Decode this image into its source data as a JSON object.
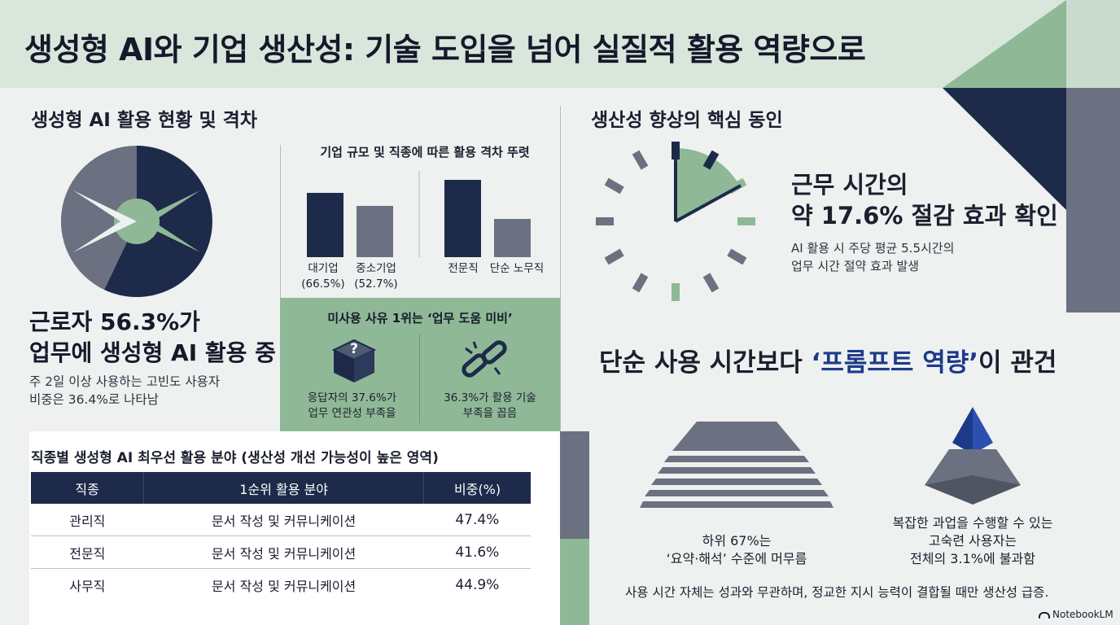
{
  "header": {
    "title": "생성형 AI와 기업 생산성: 기술 도입을 넘어 실질적 활용 역량으로"
  },
  "usage": {
    "section_title": "생성형 AI 활용 현황 및 격차",
    "headline_line1": "근로자 56.3%가",
    "headline_line2": "업무에 생성형 AI 활용 중",
    "detail_line1": "주 2일 이상 사용하는 고빈도 사용자",
    "detail_line2": "비중은 36.4%로 나타남"
  },
  "gap": {
    "title": "기업 규모 및 직종에 따른 활용 격차 뚜렷",
    "bars_left": [
      {
        "label": "대기업",
        "value_label": "(66.5%)",
        "value": 66.5,
        "color": "#1d2a4a"
      },
      {
        "label": "중소기업",
        "value_label": "(52.7%)",
        "value": 52.7,
        "color": "#6b7180"
      }
    ],
    "bars_right": [
      {
        "label": "전문직",
        "color": "#1d2a4a"
      },
      {
        "label": "단순 노무직",
        "color": "#6b7180"
      }
    ]
  },
  "nonuse": {
    "title": "미사용 사유 1위는 ‘업무 도움 미비’",
    "item1_line1": "응답자의 37.6%가",
    "item1_line2": "업무 연관성 부족을",
    "item2_line1": "36.3%가 활용 기술",
    "item2_line2": "부족을 꼽음",
    "icon1": "question-box-icon",
    "icon2": "broken-chain-icon"
  },
  "table": {
    "title": "직종별 생성형 AI 최우선 활용 분야 (생산성 개선 가능성이 높은 영역)",
    "headers": [
      "직종",
      "1순위 활용 분야",
      "비중(%)"
    ],
    "rows": [
      [
        "관리직",
        "문서 작성 및 커뮤니케이션",
        "47.4%"
      ],
      [
        "전문직",
        "문서 작성 및 커뮤니케이션",
        "41.6%"
      ],
      [
        "사무직",
        "문서 작성 및 커뮤니케이션",
        "44.9%"
      ]
    ]
  },
  "productivity": {
    "section_title": "생산성 향상의 핵심 동인",
    "headline_line1": "근무 시간의",
    "headline_line2": "약 17.6% 절감 효과 확인",
    "detail_line1": "AI 활용 시 주당 평균 5.5시간의",
    "detail_line2": "업무 시간 절약 효과 발생",
    "icon": "clock-icon"
  },
  "prompt": {
    "headline_prefix": "단순 사용 시간보다 ",
    "headline_highlight": "‘프롬프트 역량’",
    "headline_suffix": "이 관건",
    "left_line1": "하위 67%는",
    "left_line2": "‘요약·해석’ 수준에 머무름",
    "right_line1": "복잡한 과업을 수행할 수 있는",
    "right_line2": "고숙련 사용자는",
    "right_line3": "전체의 3.1%에 불과함",
    "footnote": "사용 시간 자체는 성과와 무관하며, 정교한 지시 능력이 결합될 때만 생산성 급증.",
    "highlight_color": "#1d3a8a"
  },
  "brand": {
    "label": "NotebookLM"
  },
  "colors": {
    "navy": "#1d2a4a",
    "gray": "#6b7180",
    "green": "#8fb996",
    "light_green": "#d9e6dc"
  }
}
